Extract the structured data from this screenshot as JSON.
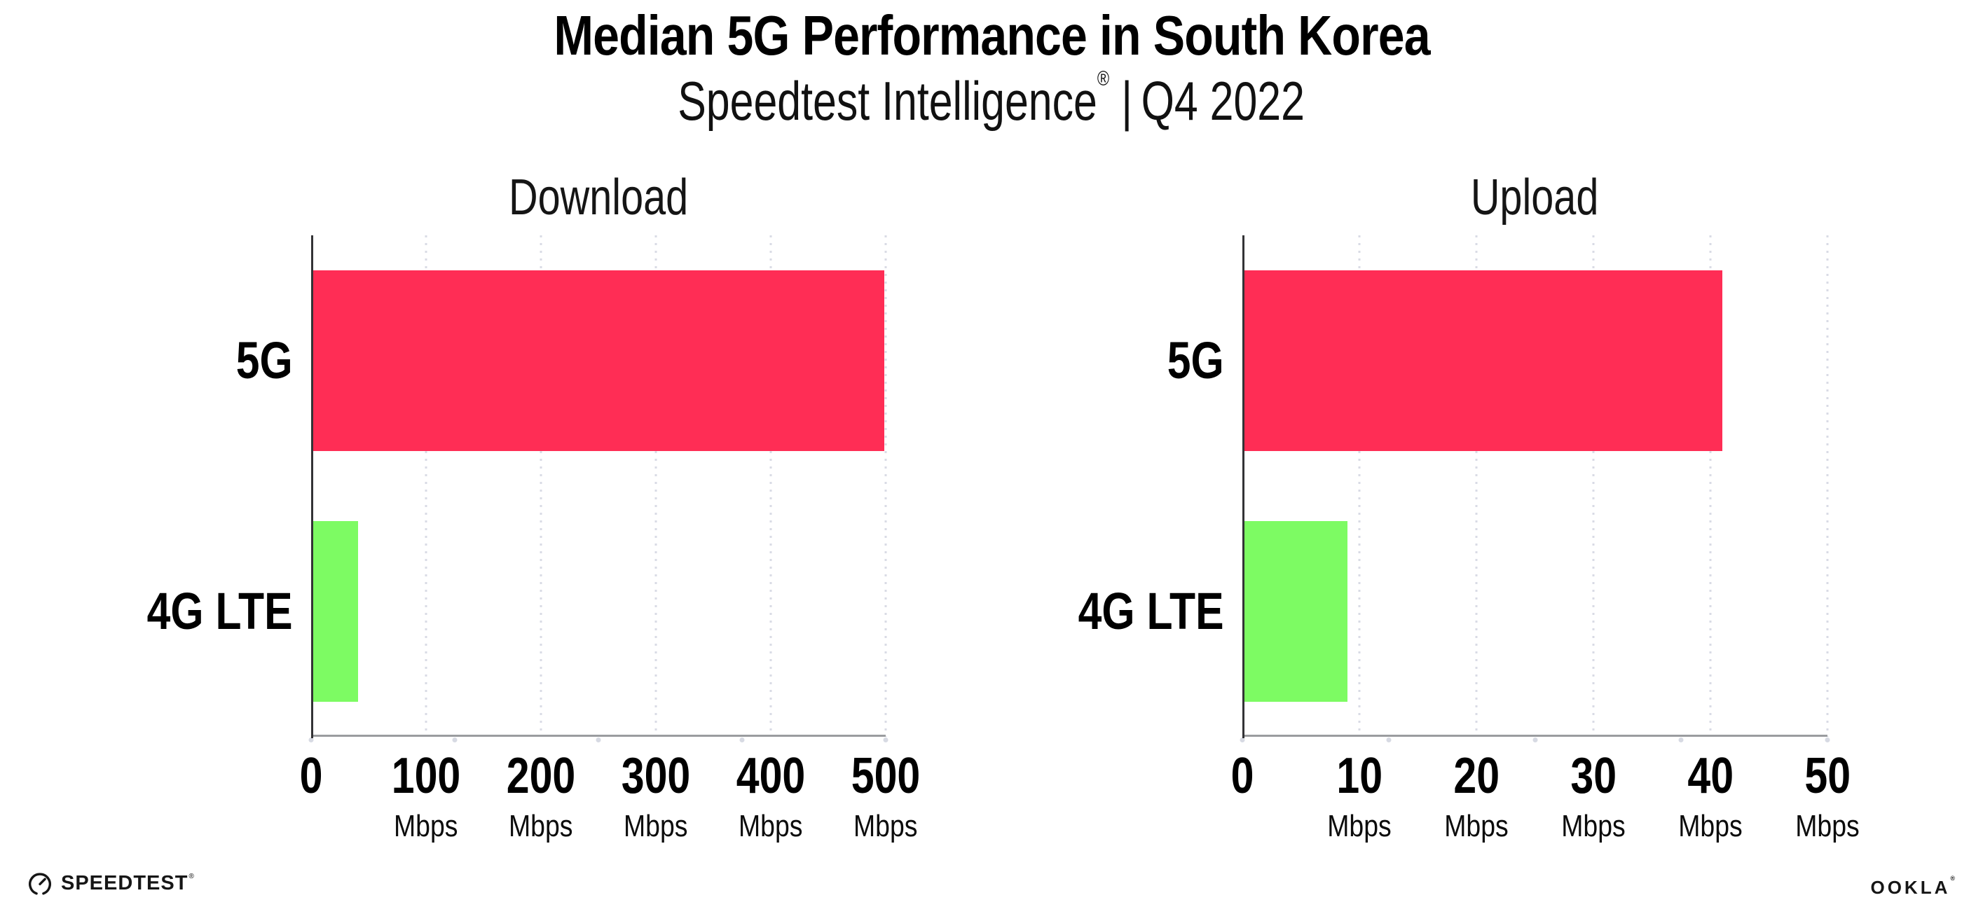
{
  "header": {
    "title": "Median 5G Performance in South Korea",
    "subtitle_brand": "Speedtest Intelligence",
    "registered_mark": "®",
    "separator": "|",
    "period": "Q4 2022"
  },
  "chart_data": [
    {
      "type": "bar",
      "orientation": "horizontal",
      "title": "Download",
      "categories": [
        "5G",
        "4G LTE"
      ],
      "values": [
        499,
        41
      ],
      "unit": "Mbps",
      "xlim": [
        0,
        500
      ],
      "xticks": [
        0,
        100,
        200,
        300,
        400,
        500
      ],
      "tick_unit": "Mbps",
      "bar_colors": [
        "#FF2D55",
        "#7DFB63"
      ],
      "grid": true,
      "legend": false
    },
    {
      "type": "bar",
      "orientation": "horizontal",
      "title": "Upload",
      "categories": [
        "5G",
        "4G LTE"
      ],
      "values": [
        41,
        9
      ],
      "unit": "Mbps",
      "xlim": [
        0,
        50
      ],
      "xticks": [
        0,
        10,
        20,
        30,
        40,
        50
      ],
      "tick_unit": "Mbps",
      "bar_colors": [
        "#FF2D55",
        "#7DFB63"
      ],
      "grid": true,
      "legend": false
    }
  ],
  "footer": {
    "speedtest_label": "SPEEDTEST",
    "speedtest_mark": "®",
    "ookla_label": "OOKLA",
    "ookla_mark": "®"
  },
  "icons": {
    "speedtest_gauge": "speedtest-gauge-icon"
  },
  "colors": {
    "bar_5g": "#FF2D55",
    "bar_4g_lte": "#7DFB63",
    "gridline": "#d9dbe5",
    "x_axis": "#9a9c9f",
    "y_axis": "#333336",
    "text": "#000000"
  }
}
